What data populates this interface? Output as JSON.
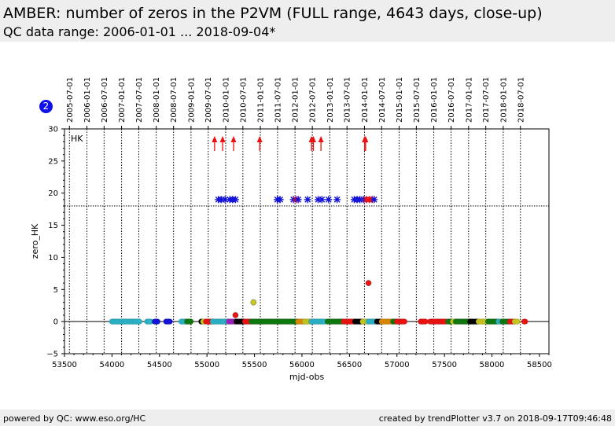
{
  "header": {
    "title": "AMBER: number of zeros in the P2VM (FULL range, 4643 days, close-up)",
    "subtitle": "QC data range: 2006-01-01 ... 2018-09-04*"
  },
  "badge": "2",
  "footer": {
    "left": "powered by QC: www.eso.org/HC",
    "right": "created by trendPlotter v3.7 on 2018-09-17T09:46:48"
  },
  "chart_data": {
    "type": "scatter",
    "xlabel": "mjd-obs",
    "ylabel": "zero_HK",
    "panel_label": "HK",
    "xlim": [
      53500,
      58600
    ],
    "ylim": [
      -5,
      30
    ],
    "x_ticks": [
      53500,
      54000,
      54500,
      55000,
      55500,
      56000,
      56500,
      57000,
      57500,
      58000,
      58500
    ],
    "y_ticks": [
      -5,
      0,
      5,
      10,
      15,
      20,
      25,
      30
    ],
    "threshold_y": 18,
    "date_ticks": [
      {
        "label": "2005-07-01",
        "mjd": 53552
      },
      {
        "label": "2006-01-01",
        "mjd": 53736
      },
      {
        "label": "2006-07-01",
        "mjd": 53917
      },
      {
        "label": "2007-01-01",
        "mjd": 54101
      },
      {
        "label": "2007-07-01",
        "mjd": 54282
      },
      {
        "label": "2008-01-01",
        "mjd": 54466
      },
      {
        "label": "2008-07-01",
        "mjd": 54648
      },
      {
        "label": "2009-01-01",
        "mjd": 54832
      },
      {
        "label": "2009-07-01",
        "mjd": 55013
      },
      {
        "label": "2010-01-01",
        "mjd": 55197
      },
      {
        "label": "2010-07-01",
        "mjd": 55378
      },
      {
        "label": "2011-01-01",
        "mjd": 55562
      },
      {
        "label": "2011-07-01",
        "mjd": 55743
      },
      {
        "label": "2012-01-01",
        "mjd": 55927
      },
      {
        "label": "2012-07-01",
        "mjd": 56109
      },
      {
        "label": "2013-01-01",
        "mjd": 56293
      },
      {
        "label": "2013-07-01",
        "mjd": 56474
      },
      {
        "label": "2014-01-01",
        "mjd": 56658
      },
      {
        "label": "2014-07-01",
        "mjd": 56839
      },
      {
        "label": "2015-01-01",
        "mjd": 57023
      },
      {
        "label": "2015-07-01",
        "mjd": 57204
      },
      {
        "label": "2016-01-01",
        "mjd": 57388
      },
      {
        "label": "2016-07-01",
        "mjd": 57570
      },
      {
        "label": "2017-01-01",
        "mjd": 57754
      },
      {
        "label": "2017-07-01",
        "mjd": 57935
      },
      {
        "label": "2018-01-01",
        "mjd": 58119
      },
      {
        "label": "2018-07-01",
        "mjd": 58300
      }
    ],
    "colors": {
      "cyan": "#2ab5c8",
      "green": "#0e7a0e",
      "red": "#ee1111",
      "blue": "#1212d8",
      "black": "#000000",
      "yellow": "#c8c820",
      "orange": "#e08a00",
      "purple": "#a020c0"
    },
    "zero_segments": [
      {
        "x0": 54000,
        "x1": 54290,
        "color": "cyan"
      },
      {
        "x0": 54370,
        "x1": 54410,
        "color": "cyan"
      },
      {
        "x0": 54450,
        "x1": 54480,
        "color": "blue"
      },
      {
        "x0": 54570,
        "x1": 54610,
        "color": "blue"
      },
      {
        "x0": 54730,
        "x1": 54790,
        "color": "cyan"
      },
      {
        "x0": 54790,
        "x1": 54830,
        "color": "green"
      },
      {
        "x0": 54940,
        "x1": 54960,
        "color": "black"
      },
      {
        "x0": 54960,
        "x1": 54990,
        "color": "yellow"
      },
      {
        "x0": 54990,
        "x1": 55060,
        "color": "red"
      },
      {
        "x0": 55060,
        "x1": 55230,
        "color": "cyan"
      },
      {
        "x0": 55230,
        "x1": 55310,
        "color": "purple"
      },
      {
        "x0": 55310,
        "x1": 55400,
        "color": "black"
      },
      {
        "x0": 55400,
        "x1": 55470,
        "color": "red"
      },
      {
        "x0": 55470,
        "x1": 55600,
        "color": "green"
      },
      {
        "x0": 55600,
        "x1": 55960,
        "color": "green"
      },
      {
        "x0": 55960,
        "x1": 56030,
        "color": "orange"
      },
      {
        "x0": 56030,
        "x1": 56100,
        "color": "yellow"
      },
      {
        "x0": 56100,
        "x1": 56250,
        "color": "cyan"
      },
      {
        "x0": 56270,
        "x1": 56440,
        "color": "green"
      },
      {
        "x0": 56440,
        "x1": 56560,
        "color": "red"
      },
      {
        "x0": 56560,
        "x1": 56640,
        "color": "black"
      },
      {
        "x0": 56640,
        "x1": 56700,
        "color": "yellow"
      },
      {
        "x0": 56700,
        "x1": 56790,
        "color": "cyan"
      },
      {
        "x0": 56790,
        "x1": 56840,
        "color": "black"
      },
      {
        "x0": 56840,
        "x1": 56960,
        "color": "orange"
      },
      {
        "x0": 56960,
        "x1": 57000,
        "color": "green"
      },
      {
        "x0": 57000,
        "x1": 57080,
        "color": "red"
      },
      {
        "x0": 57250,
        "x1": 57300,
        "color": "red"
      },
      {
        "x0": 57350,
        "x1": 57520,
        "color": "red"
      },
      {
        "x0": 57540,
        "x1": 57580,
        "color": "green"
      },
      {
        "x0": 57590,
        "x1": 57620,
        "color": "yellow"
      },
      {
        "x0": 57620,
        "x1": 57770,
        "color": "green"
      },
      {
        "x0": 57770,
        "x1": 57860,
        "color": "black"
      },
      {
        "x0": 57860,
        "x1": 57960,
        "color": "yellow"
      },
      {
        "x0": 57960,
        "x1": 58070,
        "color": "green"
      },
      {
        "x0": 58070,
        "x1": 58110,
        "color": "cyan"
      },
      {
        "x0": 58110,
        "x1": 58190,
        "color": "green"
      },
      {
        "x0": 58190,
        "x1": 58240,
        "color": "red"
      },
      {
        "x0": 58240,
        "x1": 58270,
        "color": "yellow"
      },
      {
        "x0": 58340,
        "x1": 58350,
        "color": "red"
      }
    ],
    "points": [
      {
        "x": 55300,
        "y": 1,
        "color": "red"
      },
      {
        "x": 55490,
        "y": 3,
        "color": "yellow"
      },
      {
        "x": 56700,
        "y": 6,
        "color": "red"
      }
    ],
    "star_points": [
      {
        "x": 55120,
        "y": 19,
        "color": "blue"
      },
      {
        "x": 55150,
        "y": 19,
        "color": "blue"
      },
      {
        "x": 55190,
        "y": 19,
        "color": "blue"
      },
      {
        "x": 55240,
        "y": 19,
        "color": "blue"
      },
      {
        "x": 55270,
        "y": 19,
        "color": "blue"
      },
      {
        "x": 55300,
        "y": 19,
        "color": "blue"
      },
      {
        "x": 55740,
        "y": 19,
        "color": "blue"
      },
      {
        "x": 55770,
        "y": 19,
        "color": "blue"
      },
      {
        "x": 55910,
        "y": 19,
        "color": "blue"
      },
      {
        "x": 55940,
        "y": 19,
        "color": "red"
      },
      {
        "x": 55960,
        "y": 19,
        "color": "blue"
      },
      {
        "x": 56060,
        "y": 19,
        "color": "blue"
      },
      {
        "x": 56170,
        "y": 19,
        "color": "blue"
      },
      {
        "x": 56210,
        "y": 19,
        "color": "blue"
      },
      {
        "x": 56280,
        "y": 19,
        "color": "blue"
      },
      {
        "x": 56370,
        "y": 19,
        "color": "blue"
      },
      {
        "x": 56550,
        "y": 19,
        "color": "blue"
      },
      {
        "x": 56580,
        "y": 19,
        "color": "blue"
      },
      {
        "x": 56610,
        "y": 19,
        "color": "blue"
      },
      {
        "x": 56650,
        "y": 19,
        "color": "blue"
      },
      {
        "x": 56680,
        "y": 19,
        "color": "red"
      },
      {
        "x": 56710,
        "y": 19,
        "color": "red"
      },
      {
        "x": 56740,
        "y": 19,
        "color": "red"
      },
      {
        "x": 56760,
        "y": 19,
        "color": "blue"
      }
    ],
    "out_of_range_markers": [
      55080,
      55165,
      55280,
      55555,
      56100,
      56120,
      56200,
      56660,
      56670
    ]
  }
}
